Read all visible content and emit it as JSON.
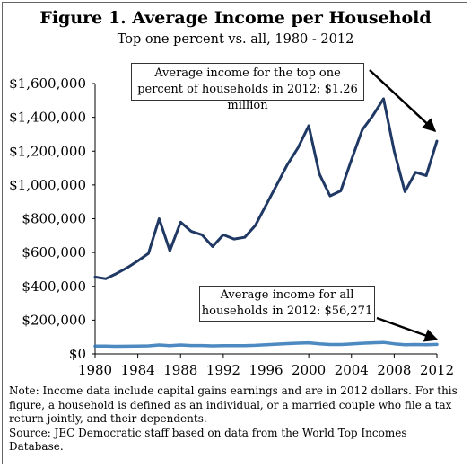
{
  "header": {
    "title": "Figure 1. Average Income per Household",
    "subtitle": "Top one percent vs. all, 1980 - 2012"
  },
  "annotations": {
    "top": "Average income for the top one percent of households in 2012: $1.26 million",
    "all": "Average income for all households in 2012: $56,271"
  },
  "notes": {
    "note": "Note: Income data include capital gains earnings and are in 2012 dollars. For this figure, a household is defined as an individual, or a married couple who file a tax return jointly, and their dependents.",
    "source": "Source: JEC Democratic staff based on data from the World Top Incomes Database."
  },
  "colors": {
    "line": "#1f3864",
    "allLine": "#2e75b6",
    "axis": "#000000"
  },
  "chart_data": {
    "type": "line",
    "title": "Figure 1. Average Income per Household",
    "subtitle": "Top one percent vs. all, 1980 - 2012",
    "xlim": [
      1980,
      2012
    ],
    "ylim": [
      0,
      1600000
    ],
    "x_ticks": [
      "1980",
      "1984",
      "1988",
      "1992",
      "1996",
      "2000",
      "2004",
      "2008",
      "2012"
    ],
    "y_ticks": [
      "$0",
      "$200,000",
      "$400,000",
      "$600,000",
      "$800,000",
      "$1,000,000",
      "$1,200,000",
      "$1,400,000",
      "$1,600,000"
    ],
    "grid": false,
    "x": [
      1980,
      1981,
      1982,
      1983,
      1984,
      1985,
      1986,
      1987,
      1988,
      1989,
      1990,
      1991,
      1992,
      1993,
      1994,
      1995,
      1996,
      1997,
      1998,
      1999,
      2000,
      2001,
      2002,
      2003,
      2004,
      2005,
      2006,
      2007,
      2008,
      2009,
      2010,
      2011,
      2012
    ],
    "series": [
      {
        "values": [
          455000,
          445000,
          475000,
          510000,
          550000,
          595000,
          800000,
          610000,
          780000,
          725000,
          705000,
          635000,
          705000,
          680000,
          690000,
          760000,
          880000,
          1000000,
          1120000,
          1220000,
          1350000,
          1065000,
          935000,
          965000,
          1150000,
          1325000,
          1410000,
          1510000,
          1200000,
          960000,
          1075000,
          1055000,
          1260000
        ]
      },
      {
        "values": [
          46000,
          46000,
          45000,
          45500,
          47000,
          48000,
          53000,
          49000,
          53000,
          50000,
          50000,
          48000,
          49000,
          49500,
          49500,
          51000,
          55000,
          58000,
          61000,
          64000,
          66000,
          60000,
          56000,
          56000,
          59000,
          63000,
          66000,
          68000,
          60000,
          54000,
          56000,
          55000,
          56271
        ]
      }
    ]
  }
}
